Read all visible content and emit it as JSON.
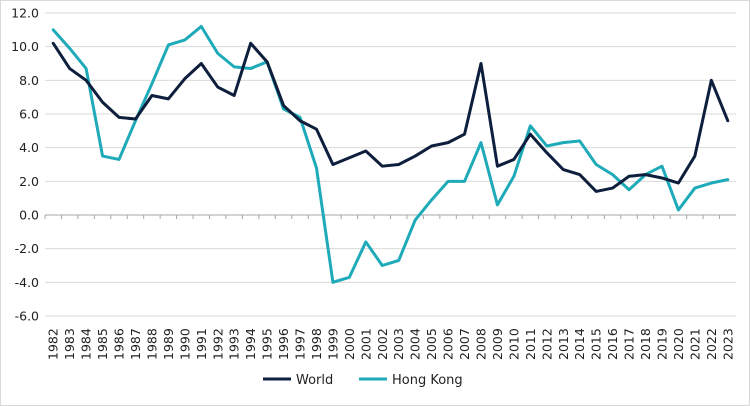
{
  "chart_data": {
    "type": "line",
    "title": "",
    "xlabel": "",
    "ylabel": "",
    "ylim": [
      -6.0,
      12.0
    ],
    "yticks": [
      "12.0",
      "10.0",
      "8.0",
      "6.0",
      "4.0",
      "2.0",
      "0.0",
      "-2.0",
      "-4.0",
      "-6.0"
    ],
    "grid": "horizontal",
    "legend_position": "bottom",
    "categories": [
      "1982",
      "1983",
      "1984",
      "1985",
      "1986",
      "1987",
      "1988",
      "1989",
      "1990",
      "1991",
      "1992",
      "1993",
      "1994",
      "1995",
      "1996",
      "1997",
      "1998",
      "1999",
      "2000",
      "2001",
      "2002",
      "2003",
      "2004",
      "2005",
      "2006",
      "2007",
      "2008",
      "2009",
      "2010",
      "2011",
      "2012",
      "2013",
      "2014",
      "2015",
      "2016",
      "2017",
      "2018",
      "2019",
      "2020",
      "2021",
      "2022",
      "2023"
    ],
    "series": [
      {
        "name": "World",
        "color": "#0d1f3c",
        "values": [
          10.2,
          8.7,
          8.0,
          6.7,
          5.8,
          5.7,
          7.1,
          6.9,
          8.1,
          9.0,
          7.6,
          7.1,
          10.2,
          9.1,
          6.5,
          5.6,
          5.1,
          3.0,
          3.4,
          3.8,
          2.9,
          3.0,
          3.5,
          4.1,
          4.3,
          4.8,
          9.0,
          2.9,
          3.3,
          4.8,
          3.7,
          2.7,
          2.4,
          1.4,
          1.6,
          2.3,
          2.4,
          2.2,
          1.9,
          3.5,
          8.0,
          5.6
        ]
      },
      {
        "name": "Hong Kong",
        "color": "#1eaab8",
        "values": [
          11.0,
          9.9,
          8.7,
          3.5,
          3.3,
          5.6,
          7.8,
          10.1,
          10.4,
          11.2,
          9.6,
          8.8,
          8.7,
          9.1,
          6.3,
          5.8,
          2.8,
          -4.0,
          -3.7,
          -1.6,
          -3.0,
          -2.7,
          -0.3,
          0.9,
          2.0,
          2.0,
          4.3,
          0.6,
          2.3,
          5.3,
          4.1,
          4.3,
          4.4,
          3.0,
          2.4,
          1.5,
          2.4,
          2.9,
          0.3,
          1.6,
          1.9,
          2.1
        ]
      }
    ]
  }
}
